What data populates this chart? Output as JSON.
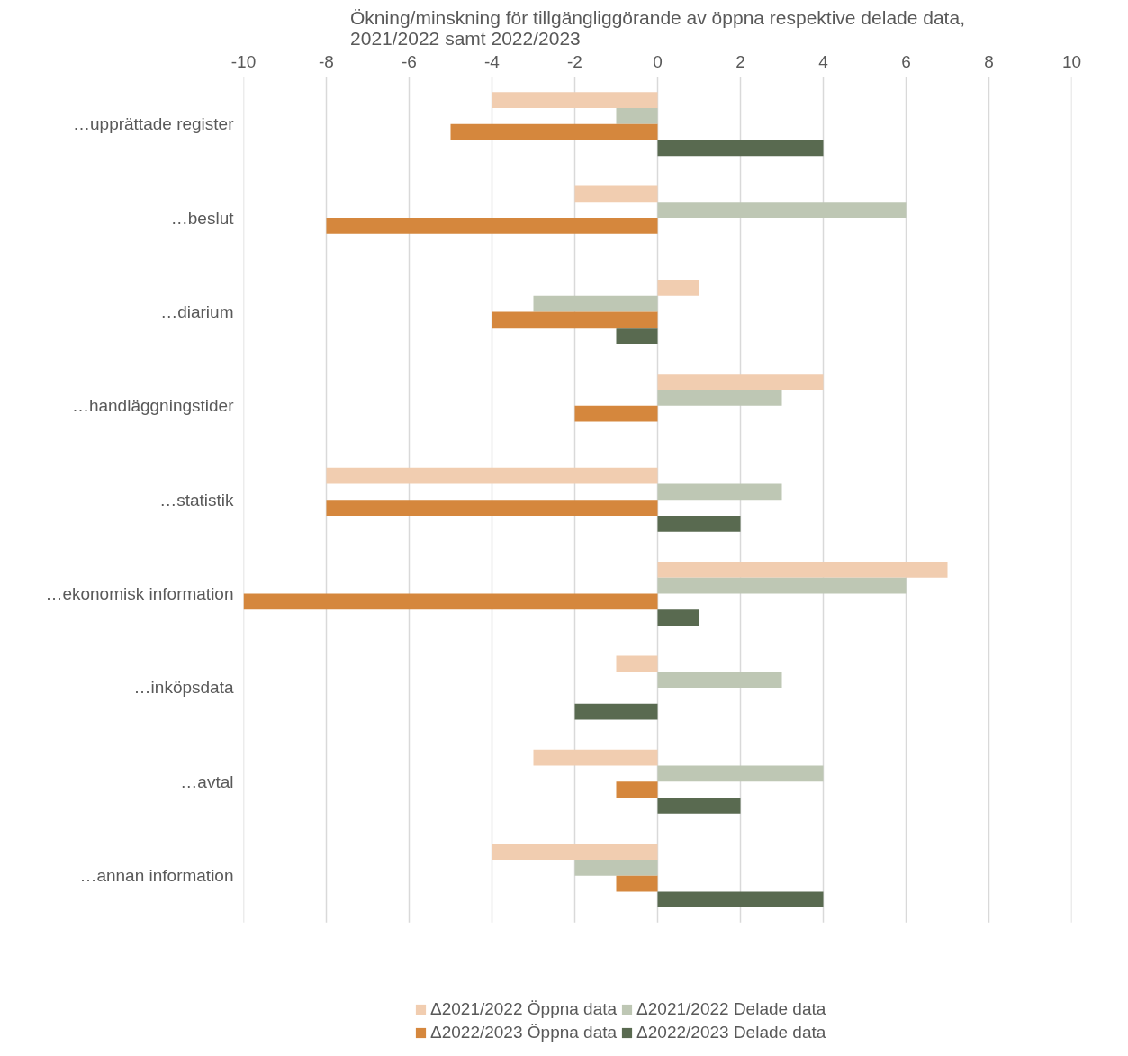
{
  "chart_data": {
    "type": "bar",
    "orientation": "horizontal",
    "title": "Ökning/minskning för tillgängliggörande av öppna respektive delade data, 2021/2022 samt 2022/2023",
    "categories": [
      "…upprättade register",
      "…beslut",
      "…diarium",
      "…handläggningstider",
      "…statistik",
      "…ekonomisk information",
      "…inköpsdata",
      "…avtal",
      "…annan information"
    ],
    "series": [
      {
        "name": "Δ2021/2022 Öppna data",
        "color": "#f1cdb0",
        "values": [
          -4,
          -2,
          1,
          4,
          -8,
          7,
          -1,
          -3,
          -4
        ]
      },
      {
        "name": "Δ2021/2022 Delade data",
        "color": "#bec7b4",
        "values": [
          -1,
          6,
          -3,
          3,
          3,
          6,
          3,
          4,
          -2
        ]
      },
      {
        "name": "Δ2022/2023 Öppna data",
        "color": "#d5873d",
        "values": [
          -5,
          -8,
          -4,
          -2,
          -8,
          -10,
          0,
          -1,
          -1
        ]
      },
      {
        "name": "Δ2022/2023 Delade data",
        "color": "#596a50",
        "values": [
          4,
          0,
          -1,
          0,
          2,
          1,
          -2,
          2,
          4
        ]
      }
    ],
    "xlim": [
      -10,
      10
    ],
    "xticks": [
      -10,
      -8,
      -6,
      -4,
      -2,
      0,
      2,
      4,
      6,
      8,
      10
    ],
    "grid": "x",
    "legend": "bottom"
  }
}
